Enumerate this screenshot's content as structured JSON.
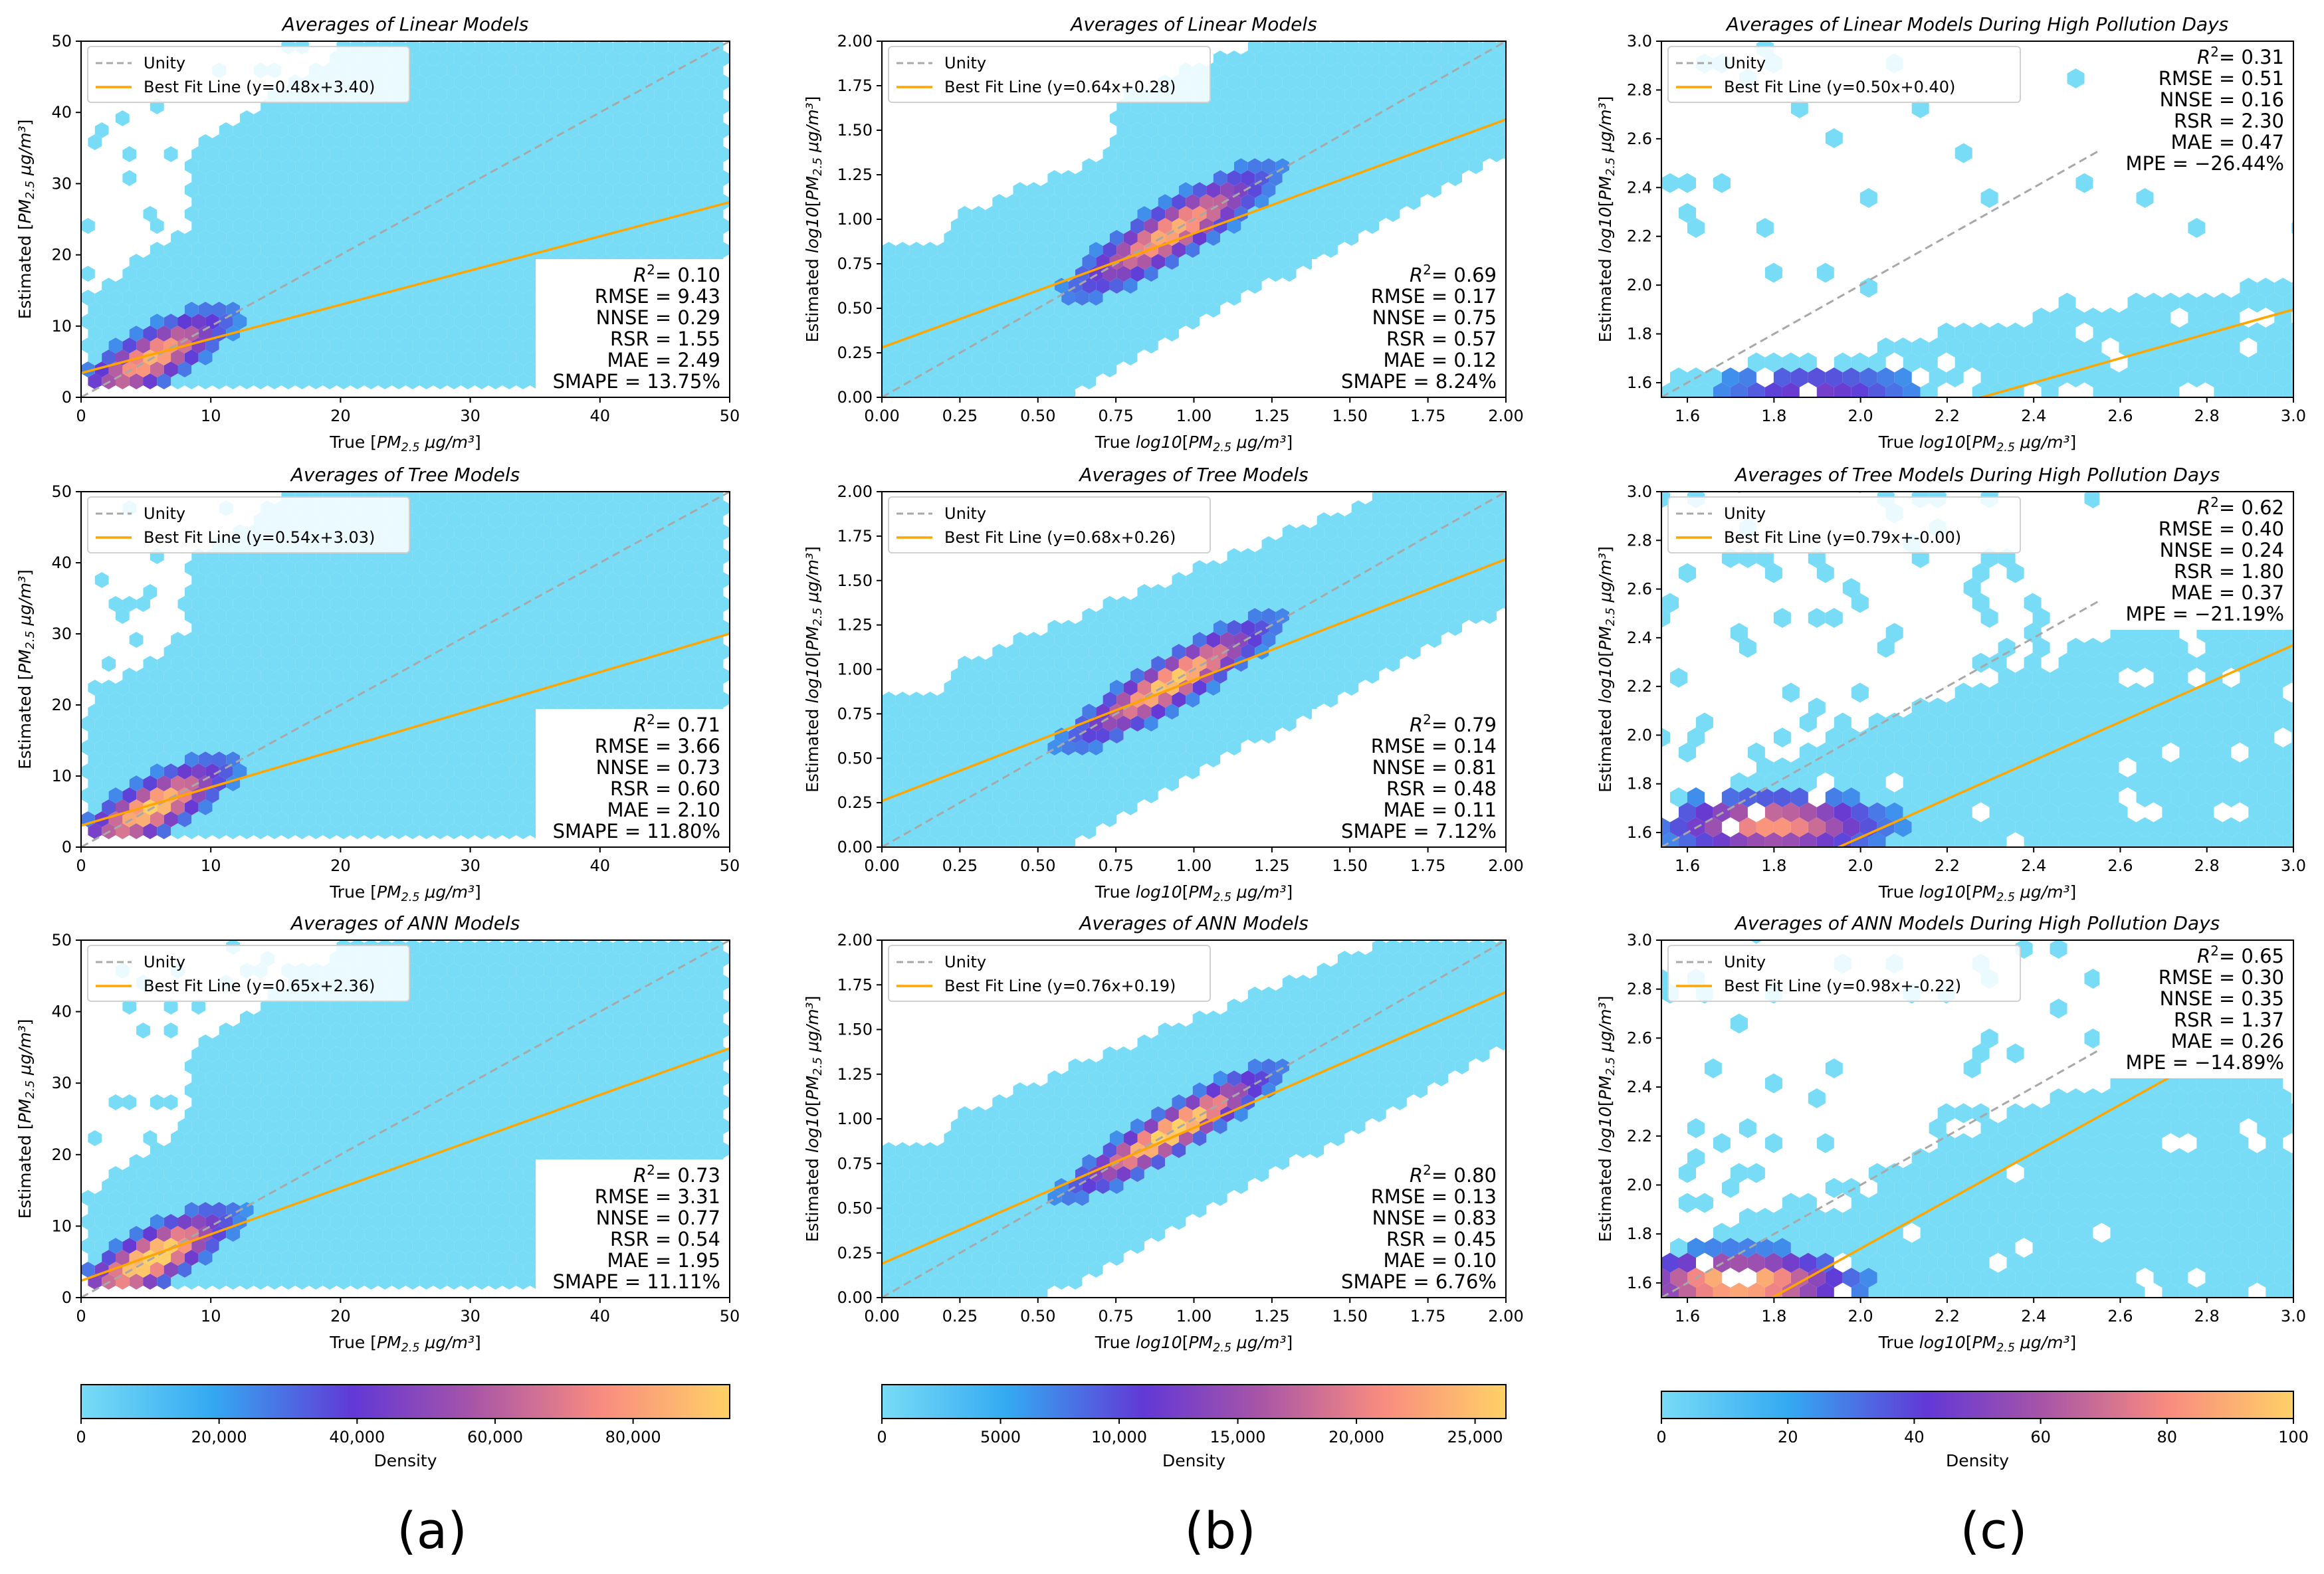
{
  "figure": {
    "column_labels": [
      "(a)",
      "(b)",
      "(c)"
    ],
    "density_label": "Density"
  },
  "colors": {
    "unity": "#a8a8a8",
    "fit": "#ffa500",
    "density_ramp": [
      "#78dcf6",
      "#34aaf2",
      "#6238d6",
      "#a654a8",
      "#f88b80",
      "#ffd166"
    ]
  },
  "colorbars": [
    {
      "ticks": [
        0,
        20000,
        40000,
        60000,
        80000
      ],
      "tick_labels": [
        "0",
        "20,000",
        "40,000",
        "60,000",
        "80,000"
      ],
      "max": 94000
    },
    {
      "ticks": [
        0,
        5000,
        10000,
        15000,
        20000,
        25000
      ],
      "tick_labels": [
        "0",
        "5000",
        "10,000",
        "15,000",
        "20,000",
        "25,000"
      ],
      "max": 26300
    },
    {
      "ticks": [
        0,
        20,
        40,
        60,
        80,
        100
      ],
      "tick_labels": [
        "0",
        "20",
        "40",
        "60",
        "80",
        "100"
      ],
      "max": 100
    }
  ],
  "chart_data": [
    {
      "type": "hexbin",
      "title": "Averages of Linear Models",
      "xlabel": "True [PM2.5 μg/m³]",
      "ylabel": "Estimated [PM2.5 μg/m³]",
      "xlim": [
        0,
        50
      ],
      "ylim": [
        0,
        50
      ],
      "xticks": [
        0,
        10,
        20,
        30,
        40,
        50
      ],
      "xtick_labels": [
        "0",
        "10",
        "20",
        "30",
        "40",
        "50"
      ],
      "yticks": [
        0,
        10,
        20,
        30,
        40,
        50
      ],
      "ytick_labels": [
        "0",
        "10",
        "20",
        "30",
        "40",
        "50"
      ],
      "legend": [
        "Unity",
        "Best Fit Line (y=0.48x+3.40)"
      ],
      "fit": {
        "slope": 0.48,
        "intercept": 3.4
      },
      "stats": [
        "R²= 0.10",
        "RMSE = 9.43",
        "NNSE = 0.29",
        "RSR = 1.55",
        "MAE = 2.49",
        "SMAPE = 13.75%"
      ]
    },
    {
      "type": "hexbin",
      "title": "Averages of Linear Models",
      "xlabel": "True log10[PM2.5 μg/m³]",
      "ylabel": "Estimated log10[PM2.5 μg/m³]",
      "xlim": [
        0,
        2
      ],
      "ylim": [
        0,
        2
      ],
      "xticks": [
        0,
        0.25,
        0.5,
        0.75,
        1,
        1.25,
        1.5,
        1.75,
        2
      ],
      "xtick_labels": [
        "0.00",
        "0.25",
        "0.50",
        "0.75",
        "1.00",
        "1.25",
        "1.50",
        "1.75",
        "2.00"
      ],
      "yticks": [
        0,
        0.25,
        0.5,
        0.75,
        1,
        1.25,
        1.5,
        1.75,
        2
      ],
      "ytick_labels": [
        "0.00",
        "0.25",
        "0.50",
        "0.75",
        "1.00",
        "1.25",
        "1.50",
        "1.75",
        "2.00"
      ],
      "legend": [
        "Unity",
        "Best Fit Line (y=0.64x+0.28)"
      ],
      "fit": {
        "slope": 0.64,
        "intercept": 0.28
      },
      "stats": [
        "R²= 0.69",
        "RMSE = 0.17",
        "NNSE = 0.75",
        "RSR = 0.57",
        "MAE = 0.12",
        "SMAPE = 8.24%"
      ]
    },
    {
      "type": "hexbin",
      "title": "Averages of Linear Models During High Pollution Days",
      "xlabel": "True log10[PM2.5 μg/m³]",
      "ylabel": "Estimated log10[PM2.5 μg/m³]",
      "xlim": [
        1.54,
        3.0
      ],
      "ylim": [
        1.54,
        3.0
      ],
      "xticks": [
        1.6,
        1.8,
        2.0,
        2.2,
        2.4,
        2.6,
        2.8,
        3.0
      ],
      "xtick_labels": [
        "1.6",
        "1.8",
        "2.0",
        "2.2",
        "2.4",
        "2.6",
        "2.8",
        "3.0"
      ],
      "yticks": [
        1.6,
        1.8,
        2.0,
        2.2,
        2.4,
        2.6,
        2.8,
        3.0
      ],
      "ytick_labels": [
        "1.6",
        "1.8",
        "2.0",
        "2.2",
        "2.4",
        "2.6",
        "2.8",
        "3.0"
      ],
      "legend": [
        "Unity",
        "Best Fit Line (y=0.50x+0.40)"
      ],
      "fit": {
        "slope": 0.5,
        "intercept": 0.4
      },
      "stats": [
        "R²= 0.31",
        "RMSE = 0.51",
        "NNSE = 0.16",
        "RSR = 2.30",
        "MAE = 0.47",
        "MPE = −26.44%"
      ]
    },
    {
      "type": "hexbin",
      "title": "Averages of Tree Models",
      "xlabel": "True [PM2.5 μg/m³]",
      "ylabel": "Estimated [PM2.5 μg/m³]",
      "xlim": [
        0,
        50
      ],
      "ylim": [
        0,
        50
      ],
      "xticks": [
        0,
        10,
        20,
        30,
        40,
        50
      ],
      "xtick_labels": [
        "0",
        "10",
        "20",
        "30",
        "40",
        "50"
      ],
      "yticks": [
        0,
        10,
        20,
        30,
        40,
        50
      ],
      "ytick_labels": [
        "0",
        "10",
        "20",
        "30",
        "40",
        "50"
      ],
      "legend": [
        "Unity",
        "Best Fit Line (y=0.54x+3.03)"
      ],
      "fit": {
        "slope": 0.54,
        "intercept": 3.03
      },
      "stats": [
        "R²= 0.71",
        "RMSE = 3.66",
        "NNSE = 0.73",
        "RSR = 0.60",
        "MAE = 2.10",
        "SMAPE = 11.80%"
      ]
    },
    {
      "type": "hexbin",
      "title": "Averages of Tree Models",
      "xlabel": "True log10[PM2.5 μg/m³]",
      "ylabel": "Estimated log10[PM2.5 μg/m³]",
      "xlim": [
        0,
        2
      ],
      "ylim": [
        0,
        2
      ],
      "xticks": [
        0,
        0.25,
        0.5,
        0.75,
        1,
        1.25,
        1.5,
        1.75,
        2
      ],
      "xtick_labels": [
        "0.00",
        "0.25",
        "0.50",
        "0.75",
        "1.00",
        "1.25",
        "1.50",
        "1.75",
        "2.00"
      ],
      "yticks": [
        0,
        0.25,
        0.5,
        0.75,
        1,
        1.25,
        1.5,
        1.75,
        2
      ],
      "ytick_labels": [
        "0.00",
        "0.25",
        "0.50",
        "0.75",
        "1.00",
        "1.25",
        "1.50",
        "1.75",
        "2.00"
      ],
      "legend": [
        "Unity",
        "Best Fit Line (y=0.68x+0.26)"
      ],
      "fit": {
        "slope": 0.68,
        "intercept": 0.26
      },
      "stats": [
        "R²= 0.79",
        "RMSE = 0.14",
        "NNSE = 0.81",
        "RSR = 0.48",
        "MAE = 0.11",
        "SMAPE = 7.12%"
      ]
    },
    {
      "type": "hexbin",
      "title": "Averages of Tree Models During High Pollution Days",
      "xlabel": "True log10[PM2.5 μg/m³]",
      "ylabel": "Estimated log10[PM2.5 μg/m³]",
      "xlim": [
        1.54,
        3.0
      ],
      "ylim": [
        1.54,
        3.0
      ],
      "xticks": [
        1.6,
        1.8,
        2.0,
        2.2,
        2.4,
        2.6,
        2.8,
        3.0
      ],
      "xtick_labels": [
        "1.6",
        "1.8",
        "2.0",
        "2.2",
        "2.4",
        "2.6",
        "2.8",
        "3.0"
      ],
      "yticks": [
        1.6,
        1.8,
        2.0,
        2.2,
        2.4,
        2.6,
        2.8,
        3.0
      ],
      "ytick_labels": [
        "1.6",
        "1.8",
        "2.0",
        "2.2",
        "2.4",
        "2.6",
        "2.8",
        "3.0"
      ],
      "legend": [
        "Unity",
        "Best Fit Line (y=0.79x+-0.00)"
      ],
      "fit": {
        "slope": 0.79,
        "intercept": 0.0
      },
      "stats": [
        "R²= 0.62",
        "RMSE = 0.40",
        "NNSE = 0.24",
        "RSR = 1.80",
        "MAE = 0.37",
        "MPE = −21.19%"
      ]
    },
    {
      "type": "hexbin",
      "title": "Averages of ANN Models",
      "xlabel": "True [PM2.5 μg/m³]",
      "ylabel": "Estimated [PM2.5 μg/m³]",
      "xlim": [
        0,
        50
      ],
      "ylim": [
        0,
        50
      ],
      "xticks": [
        0,
        10,
        20,
        30,
        40,
        50
      ],
      "xtick_labels": [
        "0",
        "10",
        "20",
        "30",
        "40",
        "50"
      ],
      "yticks": [
        0,
        10,
        20,
        30,
        40,
        50
      ],
      "ytick_labels": [
        "0",
        "10",
        "20",
        "30",
        "40",
        "50"
      ],
      "legend": [
        "Unity",
        "Best Fit Line (y=0.65x+2.36)"
      ],
      "fit": {
        "slope": 0.65,
        "intercept": 2.36
      },
      "stats": [
        "R²= 0.73",
        "RMSE = 3.31",
        "NNSE = 0.77",
        "RSR = 0.54",
        "MAE = 1.95",
        "SMAPE = 11.11%"
      ]
    },
    {
      "type": "hexbin",
      "title": "Averages of ANN Models",
      "xlabel": "True log10[PM2.5 μg/m³]",
      "ylabel": "Estimated log10[PM2.5 μg/m³]",
      "xlim": [
        0,
        2
      ],
      "ylim": [
        0,
        2
      ],
      "xticks": [
        0,
        0.25,
        0.5,
        0.75,
        1,
        1.25,
        1.5,
        1.75,
        2
      ],
      "xtick_labels": [
        "0.00",
        "0.25",
        "0.50",
        "0.75",
        "1.00",
        "1.25",
        "1.50",
        "1.75",
        "2.00"
      ],
      "yticks": [
        0,
        0.25,
        0.5,
        0.75,
        1,
        1.25,
        1.5,
        1.75,
        2
      ],
      "ytick_labels": [
        "0.00",
        "0.25",
        "0.50",
        "0.75",
        "1.00",
        "1.25",
        "1.50",
        "1.75",
        "2.00"
      ],
      "legend": [
        "Unity",
        "Best Fit Line (y=0.76x+0.19)"
      ],
      "fit": {
        "slope": 0.76,
        "intercept": 0.19
      },
      "stats": [
        "R²= 0.80",
        "RMSE = 0.13",
        "NNSE = 0.83",
        "RSR = 0.45",
        "MAE = 0.10",
        "SMAPE = 6.76%"
      ]
    },
    {
      "type": "hexbin",
      "title": "Averages of ANN Models During High Pollution Days",
      "xlabel": "True log10[PM2.5 μg/m³]",
      "ylabel": "Estimated log10[PM2.5 μg/m³]",
      "xlim": [
        1.54,
        3.0
      ],
      "ylim": [
        1.54,
        3.0
      ],
      "xticks": [
        1.6,
        1.8,
        2.0,
        2.2,
        2.4,
        2.6,
        2.8,
        3.0
      ],
      "xtick_labels": [
        "1.6",
        "1.8",
        "2.0",
        "2.2",
        "2.4",
        "2.6",
        "2.8",
        "3.0"
      ],
      "yticks": [
        1.6,
        1.8,
        2.0,
        2.2,
        2.4,
        2.6,
        2.8,
        3.0
      ],
      "ytick_labels": [
        "1.6",
        "1.8",
        "2.0",
        "2.2",
        "2.4",
        "2.6",
        "2.8",
        "3.0"
      ],
      "legend": [
        "Unity",
        "Best Fit Line (y=0.98x+-0.22)"
      ],
      "fit": {
        "slope": 0.98,
        "intercept": -0.22
      },
      "stats": [
        "R²= 0.65",
        "RMSE = 0.30",
        "NNSE = 0.35",
        "RSR = 1.37",
        "MAE = 0.26",
        "MPE = −14.89%"
      ]
    }
  ]
}
